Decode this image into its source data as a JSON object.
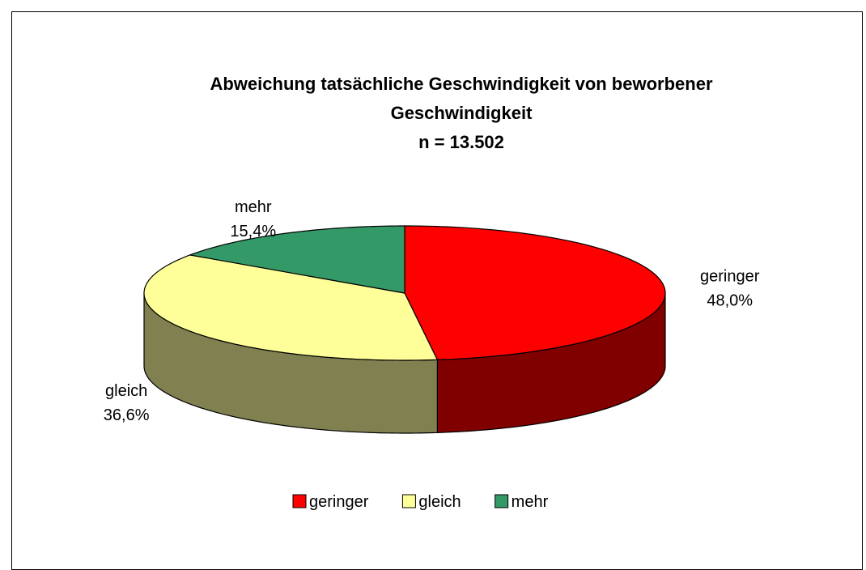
{
  "chart_data": {
    "type": "pie",
    "three_d": true,
    "title": "Abweichung tatsächliche Geschwindigkeit von beworbener Geschwindigkeit",
    "subtitle": "n = 13.502",
    "categories": [
      "geringer",
      "gleich",
      "mehr"
    ],
    "values": [
      48.0,
      36.6,
      15.4
    ],
    "value_labels": [
      "48,0%",
      "36,6%",
      "15,4%"
    ],
    "colors": [
      "#ff0000",
      "#ffff99",
      "#339966"
    ],
    "side_colors": [
      "#800000",
      "#808050",
      "#1f6b4a"
    ],
    "legend": "bottom"
  }
}
